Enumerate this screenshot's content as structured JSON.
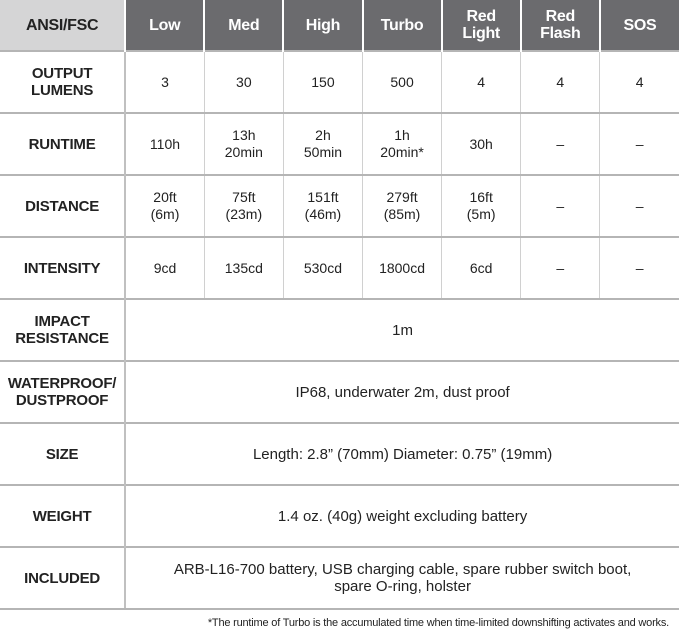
{
  "header": {
    "corner": "ANSI/FSC",
    "modes": [
      "Low",
      "Med",
      "High",
      "Turbo",
      "Red\nLight",
      "Red\nFlash",
      "SOS"
    ]
  },
  "mode_rows": [
    {
      "label": "OUTPUT\nLUMENS",
      "values": [
        "3",
        "30",
        "150",
        "500",
        "4",
        "4",
        "4"
      ]
    },
    {
      "label": "RUNTIME",
      "values": [
        "110h",
        "13h\n20min",
        "2h\n50min",
        "1h\n20min*",
        "30h",
        "–",
        "–"
      ]
    },
    {
      "label": "DISTANCE",
      "values": [
        "20ft\n(6m)",
        "75ft\n(23m)",
        "151ft\n(46m)",
        "279ft\n(85m)",
        "16ft\n(5m)",
        "–",
        "–"
      ]
    },
    {
      "label": "INTENSITY",
      "values": [
        "9cd",
        "135cd",
        "530cd",
        "1800cd",
        "6cd",
        "–",
        "–"
      ]
    }
  ],
  "spec_rows": [
    {
      "label": "IMPACT\nRESISTANCE",
      "value": "1m"
    },
    {
      "label": "WATERPROOF/\nDUSTPROOF",
      "value": "IP68, underwater 2m, dust proof"
    },
    {
      "label": "SIZE",
      "value": "Length: 2.8” (70mm)  Diameter: 0.75” (19mm)"
    },
    {
      "label": "WEIGHT",
      "value": "1.4 oz. (40g) weight excluding battery"
    },
    {
      "label": "INCLUDED",
      "value": "ARB-L16-700 battery, USB charging cable, spare rubber switch boot,\nspare O-ring, holster"
    }
  ],
  "footnote": "*The runtime of Turbo is the accumulated time when time-limited downshifting activates and works."
}
